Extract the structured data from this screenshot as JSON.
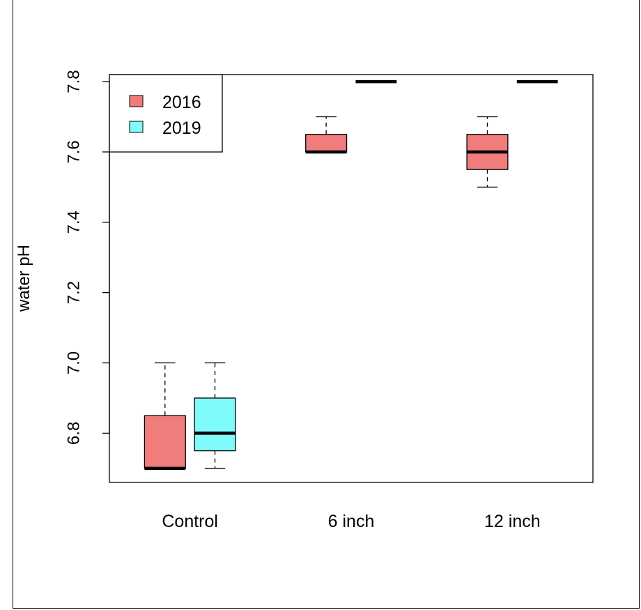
{
  "chart_data": {
    "type": "boxplot",
    "title": "",
    "xlabel": "",
    "ylabel": "water pH",
    "ylim": [
      6.66,
      7.82
    ],
    "yticks": [
      6.8,
      7.0,
      7.2,
      7.4,
      7.6,
      7.8
    ],
    "ytick_labels": [
      "6.8",
      "7.0",
      "7.2",
      "7.4",
      "7.6",
      "7.8"
    ],
    "categories": [
      "Control",
      "6 inch",
      "12 inch"
    ],
    "legend": {
      "placement": "top-left",
      "entries": [
        {
          "label": "2016",
          "color": "#f07c7c"
        },
        {
          "label": "2019",
          "color": "#7ffbfb"
        }
      ]
    },
    "series": [
      {
        "name": "2016",
        "color": "#f07c7c",
        "boxes": [
          {
            "category": "Control",
            "min": 6.7,
            "q1": 6.7,
            "median": 6.7,
            "q3": 6.85,
            "max": 7.0
          },
          {
            "category": "6 inch",
            "min": 7.6,
            "q1": 7.6,
            "median": 7.6,
            "q3": 7.65,
            "max": 7.7
          },
          {
            "category": "12 inch",
            "min": 7.5,
            "q1": 7.55,
            "median": 7.6,
            "q3": 7.65,
            "max": 7.7
          }
        ]
      },
      {
        "name": "2019",
        "color": "#7ffbfb",
        "boxes": [
          {
            "category": "Control",
            "min": 6.7,
            "q1": 6.75,
            "median": 6.8,
            "q3": 6.9,
            "max": 7.0
          },
          {
            "category": "6 inch",
            "min": 7.8,
            "q1": 7.8,
            "median": 7.8,
            "q3": 7.8,
            "max": 7.8
          },
          {
            "category": "12 inch",
            "min": 7.8,
            "q1": 7.8,
            "median": 7.8,
            "q3": 7.8,
            "max": 7.8
          }
        ]
      }
    ]
  }
}
